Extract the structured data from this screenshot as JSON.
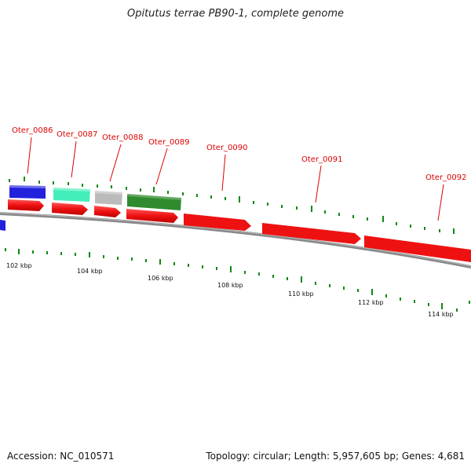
{
  "title": "Opitutus terrae PB90-1, complete genome",
  "footer": {
    "accession": "Accession: NC_010571",
    "stats": "Topology: circular; Length: 5,957,605 bp; Genes: 4,681"
  },
  "colors": {
    "label": "#dd0000",
    "tick": "#118811",
    "backbone": "#888888"
  },
  "genes": [
    {
      "label": "Oter_0086",
      "color": "#2222dd"
    },
    {
      "label": "Oter_0087",
      "color": "#44eebb"
    },
    {
      "label": "Oter_0088",
      "color": "#bbbbbb"
    },
    {
      "label": "Oter_0089",
      "color": "#2e8b2e"
    },
    {
      "label": "Oter_0090",
      "color": "#ee1111"
    },
    {
      "label": "Oter_0091",
      "color": "#ee1111"
    },
    {
      "label": "Oter_0092",
      "color": "#ee1111"
    }
  ],
  "scale_labels": [
    "102 kbp",
    "104 kbp",
    "106 kbp",
    "108 kbp",
    "110 kbp",
    "112 kbp",
    "114 kbp"
  ]
}
